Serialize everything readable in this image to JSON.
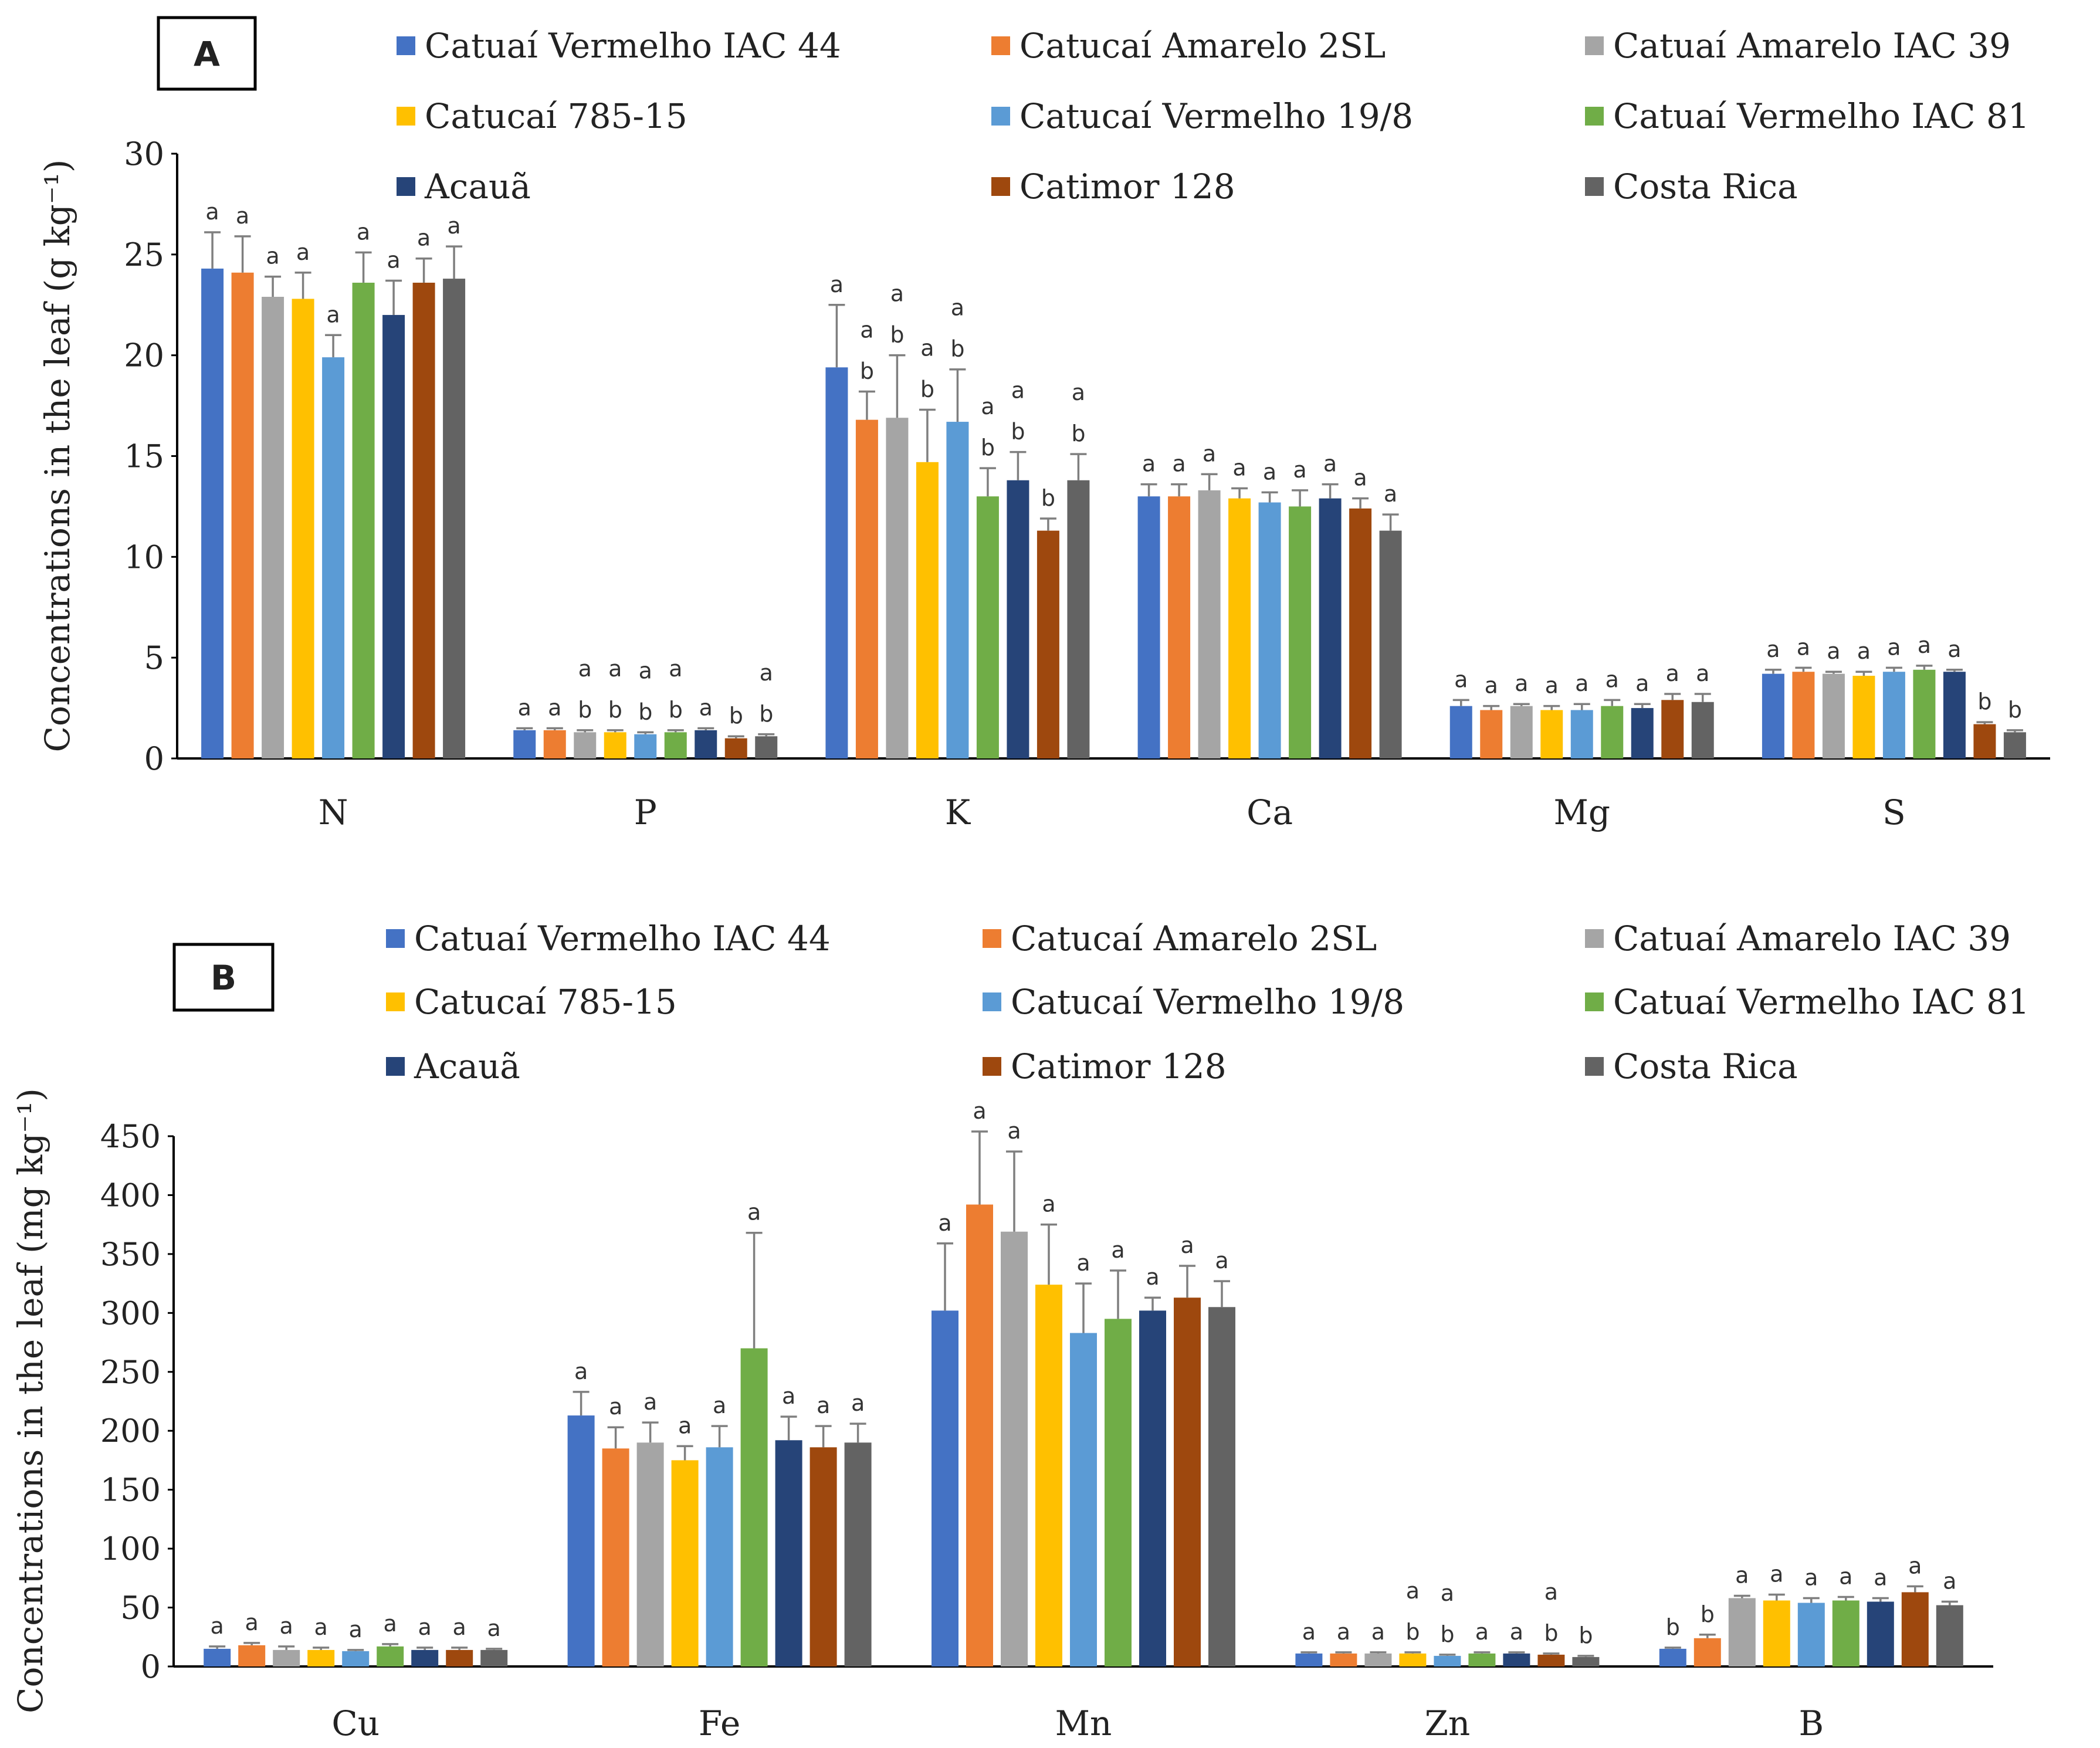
{
  "colors": [
    "#4472c4",
    "#ed7d31",
    "#a5a5a5",
    "#ffc000",
    "#5b9bd5",
    "#70ad47",
    "#264478",
    "#9e480e",
    "#636363"
  ],
  "chart_data": [
    {
      "type": "bar",
      "panel_label": "A",
      "ylabel": "Concentrations in the leaf (g kg⁻¹)",
      "ylim": [
        0,
        30
      ],
      "yticks": [
        0,
        5,
        10,
        15,
        20,
        25,
        30
      ],
      "categories": [
        "N",
        "P",
        "K",
        "Ca",
        "Mg",
        "S"
      ],
      "legend_position": "top",
      "series": [
        {
          "name": "Catuaí Vermelho IAC 44",
          "values": [
            24.3,
            1.4,
            19.4,
            13.0,
            2.6,
            4.2
          ],
          "errors": [
            1.8,
            0.1,
            3.1,
            0.6,
            0.3,
            0.2
          ],
          "letters": [
            "a",
            "a",
            "a",
            "a",
            "a",
            "a"
          ]
        },
        {
          "name": "Catucaí Amarelo 2SL",
          "values": [
            24.1,
            1.4,
            16.8,
            13.0,
            2.4,
            4.3
          ],
          "errors": [
            1.8,
            0.1,
            1.4,
            0.6,
            0.2,
            0.2
          ],
          "letters": [
            "a",
            "a",
            "a b",
            "a",
            "a",
            "a"
          ]
        },
        {
          "name": "Catuaí Amarelo IAC 39",
          "values": [
            22.9,
            1.3,
            16.9,
            13.3,
            2.6,
            4.2
          ],
          "errors": [
            1.0,
            0.1,
            3.1,
            0.8,
            0.1,
            0.1
          ],
          "letters": [
            "a",
            "a b",
            "a b",
            "a",
            "a",
            "a"
          ]
        },
        {
          "name": "Catucaí 785-15",
          "values": [
            22.8,
            1.3,
            14.7,
            12.9,
            2.4,
            4.1
          ],
          "errors": [
            1.3,
            0.1,
            2.6,
            0.5,
            0.2,
            0.2
          ],
          "letters": [
            "a",
            "a b",
            "a b",
            "a",
            "a",
            "a"
          ]
        },
        {
          "name": "Catucaí Vermelho 19/8",
          "values": [
            19.9,
            1.2,
            16.7,
            12.7,
            2.4,
            4.3
          ],
          "errors": [
            1.1,
            0.1,
            2.6,
            0.5,
            0.3,
            0.2
          ],
          "letters": [
            "a",
            "a b",
            "a b",
            "a",
            "a",
            "a"
          ]
        },
        {
          "name": "Catuaí Vermelho IAC 81",
          "values": [
            23.6,
            1.3,
            13.0,
            12.5,
            2.6,
            4.4
          ],
          "errors": [
            1.5,
            0.1,
            1.4,
            0.8,
            0.3,
            0.2
          ],
          "letters": [
            "a",
            "a b",
            "a b",
            "a",
            "a",
            "a"
          ]
        },
        {
          "name": "Acauã",
          "values": [
            22.0,
            1.4,
            13.8,
            12.9,
            2.5,
            4.3
          ],
          "errors": [
            1.7,
            0.1,
            1.4,
            0.7,
            0.2,
            0.1
          ],
          "letters": [
            "a",
            "a",
            "a b",
            "a",
            "a",
            "a"
          ]
        },
        {
          "name": "Catimor 128",
          "values": [
            23.6,
            1.0,
            11.3,
            12.4,
            2.9,
            1.7
          ],
          "errors": [
            1.2,
            0.1,
            0.6,
            0.5,
            0.3,
            0.1
          ],
          "letters": [
            "a",
            "b",
            "b",
            "a",
            "a",
            "b"
          ]
        },
        {
          "name": "Costa Rica",
          "values": [
            23.8,
            1.1,
            13.8,
            11.3,
            2.8,
            1.3
          ],
          "errors": [
            1.6,
            0.1,
            1.3,
            0.8,
            0.4,
            0.1
          ],
          "letters": [
            "a",
            "a b",
            "a b",
            "a",
            "a",
            "b"
          ]
        }
      ]
    },
    {
      "type": "bar",
      "panel_label": "B",
      "ylabel": "Concentrations in the leaf (mg kg⁻¹)",
      "ylim": [
        0,
        450
      ],
      "yticks": [
        0,
        50,
        100,
        150,
        200,
        250,
        300,
        350,
        400,
        450
      ],
      "categories": [
        "Cu",
        "Fe",
        "Mn",
        "Zn",
        "B"
      ],
      "legend_position": "top",
      "series": [
        {
          "name": "Catuaí Vermelho IAC 44",
          "values": [
            15,
            213,
            302,
            11,
            15
          ],
          "errors": [
            2,
            20,
            57,
            1,
            1
          ],
          "letters": [
            "a",
            "a",
            "a",
            "a",
            "b"
          ]
        },
        {
          "name": "Catucaí Amarelo 2SL",
          "values": [
            18,
            185,
            392,
            11,
            24
          ],
          "errors": [
            2,
            18,
            62,
            1,
            3
          ],
          "letters": [
            "a",
            "a",
            "a",
            "a",
            "b"
          ]
        },
        {
          "name": "Catuaí Amarelo IAC 39",
          "values": [
            14,
            190,
            369,
            11,
            58
          ],
          "errors": [
            3,
            17,
            68,
            1,
            2
          ],
          "letters": [
            "a",
            "a",
            "a",
            "a",
            "a"
          ]
        },
        {
          "name": "Catucaí 785-15",
          "values": [
            14,
            175,
            324,
            11,
            56
          ],
          "errors": [
            2,
            12,
            51,
            1,
            5
          ],
          "letters": [
            "a",
            "a",
            "a",
            "a b",
            "a"
          ]
        },
        {
          "name": "Catucaí Vermelho 19/8",
          "values": [
            13,
            186,
            283,
            9,
            54
          ],
          "errors": [
            1,
            18,
            42,
            1,
            4
          ],
          "letters": [
            "a",
            "a",
            "a",
            "a b",
            "a"
          ]
        },
        {
          "name": "Catuaí Vermelho IAC 81",
          "values": [
            17,
            270,
            295,
            11,
            56
          ],
          "errors": [
            2,
            98,
            41,
            1,
            3
          ],
          "letters": [
            "a",
            "a",
            "a",
            "a",
            "a"
          ]
        },
        {
          "name": "Acauã",
          "values": [
            14,
            192,
            302,
            11,
            55
          ],
          "errors": [
            2,
            20,
            11,
            1,
            3
          ],
          "letters": [
            "a",
            "a",
            "a",
            "a",
            "a"
          ]
        },
        {
          "name": "Catimor 128",
          "values": [
            14,
            186,
            313,
            10,
            63
          ],
          "errors": [
            2,
            18,
            27,
            1,
            5
          ],
          "letters": [
            "a",
            "a",
            "a",
            "a b",
            "a"
          ]
        },
        {
          "name": "Costa Rica",
          "values": [
            14,
            190,
            305,
            8,
            52
          ],
          "errors": [
            1,
            16,
            22,
            1,
            3
          ],
          "letters": [
            "a",
            "a",
            "a",
            "b",
            "a"
          ]
        }
      ]
    }
  ]
}
